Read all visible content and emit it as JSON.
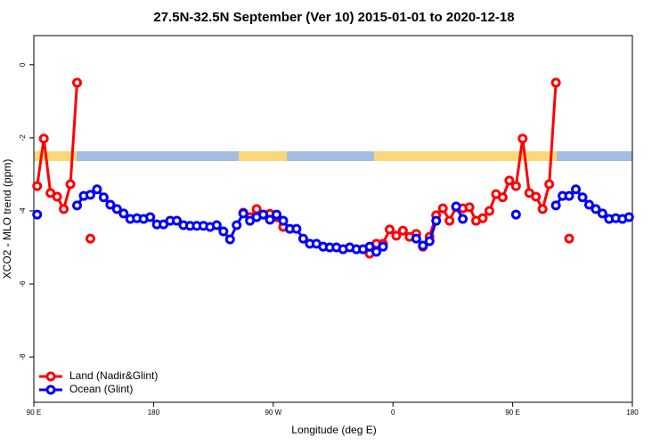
{
  "chart_data": {
    "type": "line",
    "title": "27.5N-32.5N September (Ver 10)   2015-01-01 to 2020-12-18",
    "x_label": "Longitude (deg E)",
    "y_label": "XCO2 - MLO trend (ppm)",
    "x": [
      92.5,
      97.5,
      102.5,
      107.5,
      112.5,
      117.5,
      122.5,
      127.5,
      132.5,
      137.5,
      142.5,
      147.5,
      152.5,
      157.5,
      162.5,
      167.5,
      172.5,
      177.5,
      182.5,
      187.5,
      192.5,
      197.5,
      202.5,
      207.5,
      212.5,
      217.5,
      222.5,
      227.5,
      232.5,
      237.5,
      242.5,
      247.5,
      252.5,
      257.5,
      262.5,
      267.5,
      272.5,
      277.5,
      282.5,
      287.5,
      292.5,
      297.5,
      302.5,
      307.5,
      312.5,
      317.5,
      322.5,
      327.5,
      332.5,
      337.5,
      342.5,
      347.5,
      352.5,
      357.5,
      362.5,
      367.5,
      372.5,
      377.5,
      382.5,
      387.5,
      392.5,
      397.5,
      402.5,
      407.5,
      412.5,
      417.5,
      422.5,
      427.5,
      432.5,
      437.5,
      442.5,
      447.5,
      452.5,
      457.5,
      462.5,
      467.5,
      472.5,
      477.5,
      482.5,
      487.5,
      492.5,
      497.5,
      502.5,
      507.5,
      512.5,
      517.5,
      522.5,
      527.5,
      532.5,
      537.5
    ],
    "series": [
      {
        "name": "Land (Nadir&Glint)",
        "color": "#ff0000",
        "values": [
          -3.32,
          -2.02,
          -3.51,
          -3.61,
          -3.95,
          -3.27,
          -0.49,
          null,
          -4.76,
          null,
          null,
          null,
          null,
          null,
          null,
          null,
          null,
          null,
          null,
          null,
          null,
          null,
          null,
          null,
          null,
          null,
          null,
          null,
          null,
          null,
          null,
          -4.05,
          -4.17,
          -3.95,
          -4.1,
          -4.08,
          -4.17,
          -4.44,
          null,
          null,
          null,
          null,
          null,
          null,
          null,
          null,
          null,
          null,
          null,
          null,
          -5.17,
          -4.9,
          -4.9,
          -4.51,
          -4.68,
          -4.54,
          -4.71,
          -4.63,
          -4.98,
          -4.71,
          -4.12,
          -3.93,
          -4.27,
          -3.9,
          -3.93,
          -3.9,
          -4.27,
          -4.2,
          -4.0,
          -3.54,
          -3.63,
          -3.17,
          -3.32,
          -2.02,
          -3.51,
          -3.61,
          -3.95,
          -3.27,
          -0.49,
          null,
          -4.76,
          null,
          null,
          null,
          null,
          null,
          null,
          null,
          null,
          null
        ]
      },
      {
        "name": "Ocean (Glint)",
        "color": "#0000ff",
        "values": [
          -4.1,
          null,
          null,
          null,
          null,
          null,
          -3.85,
          -3.59,
          -3.56,
          -3.41,
          -3.63,
          -3.83,
          -3.95,
          -4.07,
          -4.22,
          -4.2,
          -4.22,
          -4.17,
          -4.37,
          -4.37,
          -4.27,
          -4.27,
          -4.39,
          -4.41,
          -4.41,
          -4.41,
          -4.44,
          -4.39,
          -4.56,
          -4.78,
          -4.39,
          -4.07,
          -4.27,
          -4.17,
          -4.1,
          -4.24,
          -4.1,
          -4.27,
          -4.49,
          -4.49,
          -4.76,
          -4.9,
          -4.9,
          -4.98,
          -5.0,
          -5.0,
          -5.05,
          -5.0,
          -5.05,
          -5.05,
          -4.98,
          -5.12,
          -4.98,
          null,
          null,
          null,
          null,
          -4.76,
          -4.95,
          -4.83,
          -4.27,
          null,
          null,
          -3.88,
          -4.22,
          null,
          null,
          null,
          null,
          null,
          null,
          null,
          -4.1,
          null,
          null,
          null,
          null,
          null,
          -3.85,
          -3.59,
          -3.59,
          -3.41,
          -3.63,
          -3.83,
          -3.95,
          -4.07,
          -4.22,
          -4.2,
          -4.22,
          -4.17
        ]
      }
    ],
    "xlim": [
      90,
      540
    ],
    "xticks": [
      {
        "value": 90,
        "label": "90 E"
      },
      180,
      {
        "value": 270,
        "label": "90 W"
      },
      {
        "value": 360,
        "label": "0"
      },
      {
        "value": 450,
        "label": "90 E"
      },
      {
        "value": 540,
        "label": "180"
      }
    ],
    "ylim": [
      -9.24,
      0.8
    ],
    "yticks": [
      0,
      -2,
      -4,
      -6,
      -8
    ],
    "legend": "bottom-left"
  }
}
